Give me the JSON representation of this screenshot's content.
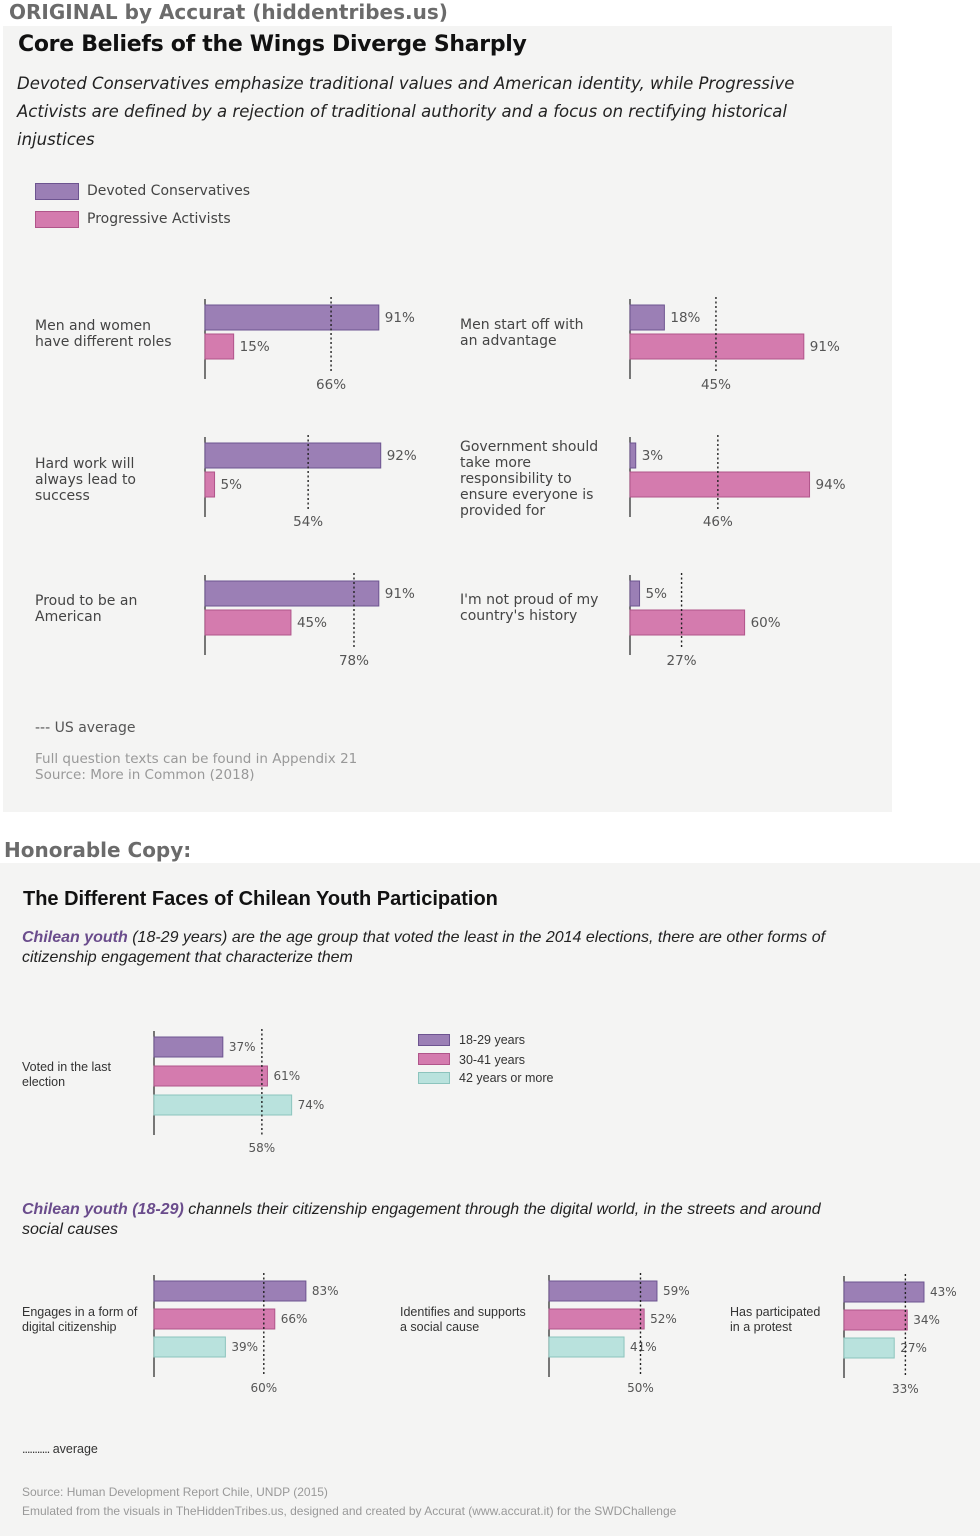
{
  "headers": {
    "original": "ORIGINAL by Accurat (hiddentribes.us)",
    "copy": "Honorable Copy:"
  },
  "original": {
    "title": "Core Beliefs of the Wings Diverge Sharply",
    "subtitle": "Devoted Conservatives emphasize traditional values and American identity, while Progressive Activists are defined by a rejection of traditional authority and a focus on rectifying historical injustices",
    "legend": [
      "Devoted Conservatives",
      "Progressive Activists"
    ],
    "avg_legend": "--- US average",
    "footnote1": "Full question texts can be found in Appendix 21",
    "footnote2": "Source: More in Common (2018)"
  },
  "copy": {
    "title": "The Different Faces of Chilean Youth Participation",
    "subtitle_bold": "Chilean youth",
    "subtitle_rest": " (18-29 years) are the age group that voted the least in the 2014 elections, there are other forms of citizenship engagement that characterize them",
    "subtitle2_bold": "Chilean youth (18-29)",
    "subtitle2_rest": " channels their citizenship engagement through the digital world, in the streets and around social causes",
    "legend": [
      "18-29 years",
      "30-41 years",
      "42 years or more"
    ],
    "avg_legend": "average",
    "source": "Source: Human Development Report Chile, UNDP (2015)",
    "credit": "Emulated from the visuals in TheHiddenTribes.us, designed and created by Accurat (www.accurat.it) for the SWDChallenge"
  },
  "colors": {
    "purple": "#9b7fb5",
    "pink": "#d47bae",
    "teal": "#b9e2dd",
    "panel": "#f4f4f3"
  },
  "chart_data": [
    {
      "type": "bar",
      "title": "Men and women have different roles",
      "series": [
        {
          "name": "Devoted Conservatives",
          "values": [
            91
          ]
        },
        {
          "name": "Progressive Activists",
          "values": [
            15
          ]
        }
      ],
      "average": 66,
      "ylim": [
        0,
        100
      ]
    },
    {
      "type": "bar",
      "title": "Men start off with an advantage",
      "series": [
        {
          "name": "Devoted Conservatives",
          "values": [
            18
          ]
        },
        {
          "name": "Progressive Activists",
          "values": [
            91
          ]
        }
      ],
      "average": 45,
      "ylim": [
        0,
        100
      ]
    },
    {
      "type": "bar",
      "title": "Hard work will always lead to success",
      "series": [
        {
          "name": "Devoted Conservatives",
          "values": [
            92
          ]
        },
        {
          "name": "Progressive Activists",
          "values": [
            5
          ]
        }
      ],
      "average": 54,
      "ylim": [
        0,
        100
      ]
    },
    {
      "type": "bar",
      "title": "Government should take more responsibility to ensure everyone is provided for",
      "series": [
        {
          "name": "Devoted Conservatives",
          "values": [
            3
          ]
        },
        {
          "name": "Progressive Activists",
          "values": [
            94
          ]
        }
      ],
      "average": 46,
      "ylim": [
        0,
        100
      ]
    },
    {
      "type": "bar",
      "title": "Proud to be an American",
      "series": [
        {
          "name": "Devoted Conservatives",
          "values": [
            91
          ]
        },
        {
          "name": "Progressive Activists",
          "values": [
            45
          ]
        }
      ],
      "average": 78,
      "ylim": [
        0,
        100
      ]
    },
    {
      "type": "bar",
      "title": "I'm not proud of my country's history",
      "series": [
        {
          "name": "Devoted Conservatives",
          "values": [
            5
          ]
        },
        {
          "name": "Progressive Activists",
          "values": [
            60
          ]
        }
      ],
      "average": 27,
      "ylim": [
        0,
        100
      ]
    },
    {
      "type": "bar",
      "title": "Voted in the last election",
      "series": [
        {
          "name": "18-29 years",
          "values": [
            37
          ]
        },
        {
          "name": "30-41 years",
          "values": [
            61
          ]
        },
        {
          "name": "42 years or more",
          "values": [
            74
          ]
        }
      ],
      "average": 58,
      "ylim": [
        0,
        100
      ]
    },
    {
      "type": "bar",
      "title": "Engages in a form of digital citizenship",
      "series": [
        {
          "name": "18-29 years",
          "values": [
            83
          ]
        },
        {
          "name": "30-41 years",
          "values": [
            66
          ]
        },
        {
          "name": "42 years or more",
          "values": [
            39
          ]
        }
      ],
      "average": 60,
      "ylim": [
        0,
        100
      ]
    },
    {
      "type": "bar",
      "title": "Identifies and supports a social cause",
      "series": [
        {
          "name": "18-29 years",
          "values": [
            59
          ]
        },
        {
          "name": "30-41 years",
          "values": [
            52
          ]
        },
        {
          "name": "42 years or more",
          "values": [
            41
          ]
        }
      ],
      "average": 50,
      "ylim": [
        0,
        100
      ]
    },
    {
      "type": "bar",
      "title": "Has participated in a protest",
      "series": [
        {
          "name": "18-29 years",
          "values": [
            43
          ]
        },
        {
          "name": "30-41 years",
          "values": [
            34
          ]
        },
        {
          "name": "42 years or more",
          "values": [
            27
          ]
        }
      ],
      "average": 33,
      "ylim": [
        0,
        100
      ]
    }
  ]
}
